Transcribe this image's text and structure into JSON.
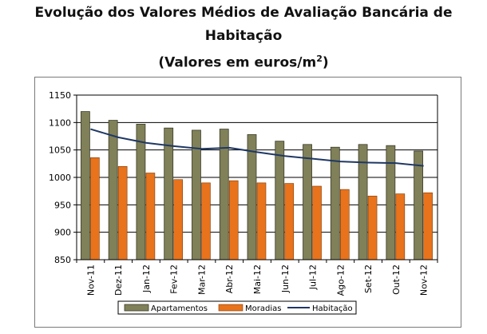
{
  "title_line1": "Evolução dos Valores Médios de Avaliação Bancária de",
  "title_line2": "Habitação",
  "title_line3": "(Valores em euros/m",
  "title_sup": "2",
  "title_end": ")",
  "colors": {
    "apartamentos": "#808059",
    "moradias": "#e8731c",
    "habitacao": "#1f3864",
    "grid": "#000000"
  },
  "chart_data": {
    "type": "bar",
    "categories": [
      "Nov-11",
      "Dez-11",
      "Jan-12",
      "Fev-12",
      "Mar-12",
      "Abr-12",
      "Mai-12",
      "Jun-12",
      "Jul-12",
      "Ago-12",
      "Set-12",
      "Out-12",
      "Nov-12"
    ],
    "series": [
      {
        "name": "Apartamentos",
        "type": "bar",
        "values": [
          1120,
          1104,
          1097,
          1090,
          1086,
          1088,
          1078,
          1066,
          1060,
          1055,
          1060,
          1058,
          1048
        ]
      },
      {
        "name": "Moradias",
        "type": "bar",
        "values": [
          1036,
          1020,
          1008,
          996,
          990,
          994,
          990,
          989,
          984,
          978,
          966,
          970,
          972
        ]
      },
      {
        "name": "Habitação",
        "type": "line",
        "values": [
          1088,
          1073,
          1063,
          1057,
          1052,
          1054,
          1046,
          1039,
          1034,
          1029,
          1027,
          1026,
          1021
        ]
      }
    ],
    "ylim": [
      850,
      1150
    ],
    "yticks": [
      850,
      900,
      950,
      1000,
      1050,
      1100,
      1150
    ],
    "grid": true,
    "legend": "bottom"
  }
}
